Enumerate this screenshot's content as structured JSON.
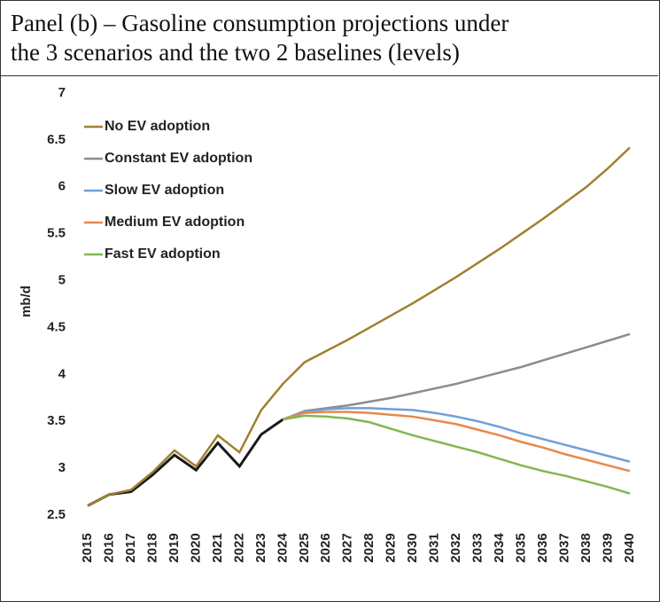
{
  "chart_data": {
    "type": "line",
    "title": [
      "Panel (b) – Gasoline consumption projections under",
      "the 3 scenarios and the two 2 baselines (levels)"
    ],
    "y_label": "mb/d",
    "categories": [
      "2015",
      "2016",
      "2017",
      "2018",
      "2019",
      "2020",
      "2021",
      "2022",
      "2023",
      "2024",
      "2025",
      "2026",
      "2027",
      "2028",
      "2029",
      "2030",
      "2031",
      "2032",
      "2033",
      "2034",
      "2035",
      "2036",
      "2037",
      "2038",
      "2039",
      "2040"
    ],
    "series": [
      {
        "color": "#1a1a1a",
        "values": [
          2.6,
          2.72,
          2.75,
          2.93,
          3.14,
          2.98,
          3.27,
          3.02,
          3.36,
          3.52,
          null,
          null,
          null,
          null,
          null,
          null,
          null,
          null,
          null,
          null,
          null,
          null,
          null,
          null,
          null,
          null
        ]
      },
      {
        "name": "No EV adoption",
        "color": "#a08030",
        "values": [
          2.6,
          2.72,
          2.77,
          2.96,
          3.19,
          3.02,
          3.35,
          3.17,
          3.62,
          3.9,
          4.13,
          4.25,
          4.37,
          4.5,
          4.63,
          4.76,
          4.9,
          5.04,
          5.19,
          5.34,
          5.5,
          5.66,
          5.83,
          6.0,
          6.2,
          6.42
        ]
      },
      {
        "name": "Constant EV adoption",
        "color": "#8c8c8c",
        "values": [
          null,
          null,
          null,
          null,
          null,
          null,
          null,
          null,
          null,
          3.52,
          3.61,
          3.64,
          3.67,
          3.71,
          3.75,
          3.8,
          3.85,
          3.9,
          3.96,
          4.02,
          4.08,
          4.15,
          4.22,
          4.29,
          4.36,
          4.43
        ]
      },
      {
        "name": "Slow EV adoption",
        "color": "#6f9fd8",
        "values": [
          null,
          null,
          null,
          null,
          null,
          null,
          null,
          null,
          null,
          3.52,
          3.6,
          3.63,
          3.64,
          3.64,
          3.63,
          3.62,
          3.59,
          3.55,
          3.5,
          3.44,
          3.37,
          3.31,
          3.25,
          3.19,
          3.13,
          3.07
        ]
      },
      {
        "name": "Medium EV adoption",
        "color": "#e8884a",
        "values": [
          null,
          null,
          null,
          null,
          null,
          null,
          null,
          null,
          null,
          3.52,
          3.59,
          3.6,
          3.6,
          3.59,
          3.57,
          3.55,
          3.51,
          3.47,
          3.41,
          3.35,
          3.28,
          3.22,
          3.15,
          3.09,
          3.03,
          2.97
        ]
      },
      {
        "name": "Fast EV adoption",
        "color": "#80b850",
        "values": [
          null,
          null,
          null,
          null,
          null,
          null,
          null,
          null,
          null,
          3.52,
          3.56,
          3.55,
          3.53,
          3.49,
          3.42,
          3.35,
          3.29,
          3.23,
          3.17,
          3.1,
          3.03,
          2.97,
          2.92,
          2.86,
          2.8,
          2.73
        ]
      }
    ],
    "ylim": [
      2.5,
      7
    ],
    "yticks": [
      2.5,
      3,
      3.5,
      4,
      4.5,
      5,
      5.5,
      6,
      6.5,
      7
    ],
    "grid": false
  }
}
